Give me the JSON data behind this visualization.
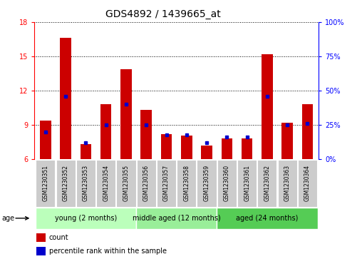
{
  "title": "GDS4892 / 1439665_at",
  "samples": [
    "GSM1230351",
    "GSM1230352",
    "GSM1230353",
    "GSM1230354",
    "GSM1230355",
    "GSM1230356",
    "GSM1230357",
    "GSM1230358",
    "GSM1230359",
    "GSM1230360",
    "GSM1230361",
    "GSM1230362",
    "GSM1230363",
    "GSM1230364"
  ],
  "count_values": [
    9.4,
    16.6,
    7.3,
    10.8,
    13.9,
    10.3,
    8.2,
    8.1,
    7.2,
    7.8,
    7.8,
    15.2,
    9.2,
    10.8
  ],
  "percentile_values": [
    20,
    46,
    12,
    25,
    40,
    25,
    18,
    18,
    12,
    16,
    16,
    46,
    25,
    26
  ],
  "ymin": 6,
  "ymax": 18,
  "yticks": [
    6,
    9,
    12,
    15,
    18
  ],
  "y2ticks": [
    0,
    25,
    50,
    75,
    100
  ],
  "y2labels": [
    "0%",
    "25%",
    "50%",
    "75%",
    "100%"
  ],
  "bar_color": "#cc0000",
  "percentile_color": "#0000cc",
  "bar_width": 0.55,
  "groups": [
    {
      "label": "young (2 months)",
      "start": 0,
      "end": 4
    },
    {
      "label": "middle aged (12 months)",
      "start": 5,
      "end": 8
    },
    {
      "label": "aged (24 months)",
      "start": 9,
      "end": 13
    }
  ],
  "group_colors": [
    "#bbffbb",
    "#99ee99",
    "#55cc55"
  ],
  "sample_box_color": "#cccccc",
  "sample_box_edge": "#999999",
  "legend_count_label": "count",
  "legend_percentile_label": "percentile rank within the sample",
  "age_label": "age",
  "title_fontsize": 10,
  "tick_fontsize": 7,
  "sample_fontsize": 5.5,
  "group_fontsize": 7,
  "legend_fontsize": 7
}
